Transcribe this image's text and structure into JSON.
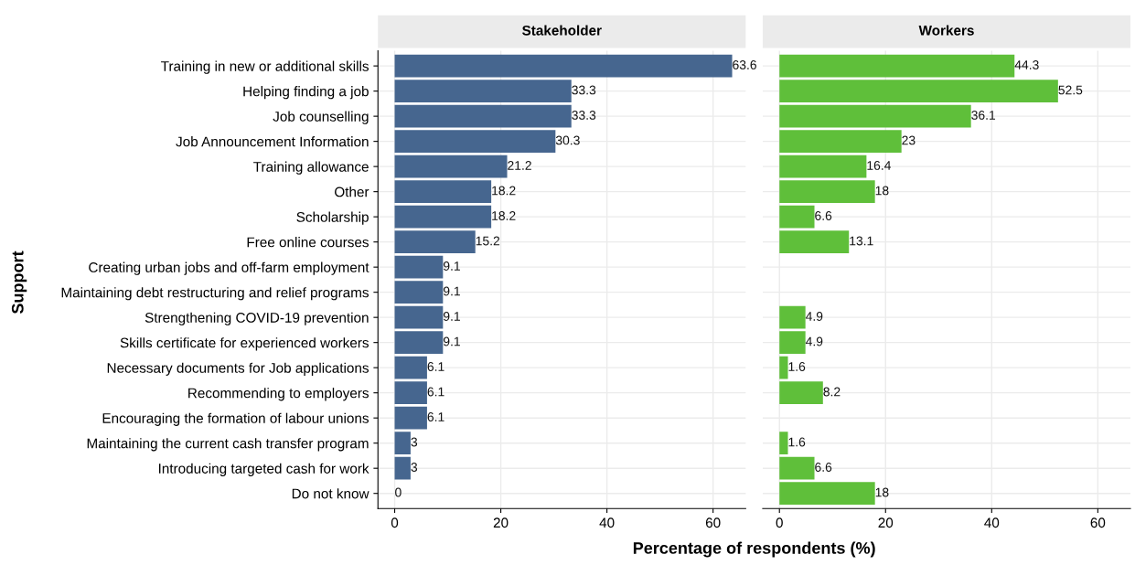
{
  "chart_data": [
    {
      "type": "bar",
      "orientation": "horizontal",
      "title": "Stakeholder",
      "xlabel": "Percentage of respondents (%)",
      "ylabel": "Support",
      "categories": [
        "Training in new or additional skills",
        "Helping finding a job",
        "Job counselling",
        "Job Announcement Information",
        "Training allowance",
        "Other",
        "Scholarship",
        "Free online courses",
        "Creating urban jobs and off-farm employment",
        "Maintaining debt restructuring and relief programs",
        "Strengthening COVID-19 prevention",
        "Skills certificate for experienced workers",
        "Necessary documents for Job applications",
        "Recommending to employers",
        "Encouraging the formation of labour unions",
        "Maintaining the current cash transfer program",
        "Introducing targeted cash for work",
        "Do not know"
      ],
      "series": [
        {
          "color": "#46668f",
          "values": [
            63.6,
            33.3,
            33.3,
            30.3,
            21.2,
            18.2,
            18.2,
            15.2,
            9.1,
            9.1,
            9.1,
            9.1,
            6.1,
            6.1,
            6.1,
            3,
            3,
            0
          ]
        }
      ],
      "xlim": [
        -3.15,
        66.15
      ],
      "xticks": [
        0,
        20,
        40,
        60
      ],
      "grid": true,
      "data_labels": true
    },
    {
      "type": "bar",
      "orientation": "horizontal",
      "title": "Workers",
      "categories": [
        null,
        null,
        null,
        null,
        null,
        null,
        null,
        null,
        null,
        null,
        null,
        null,
        null,
        null,
        null,
        null,
        null,
        null
      ],
      "series": [
        {
          "color": "#5fbf3a",
          "values": [
            44.3,
            52.5,
            36.1,
            23,
            16.4,
            18,
            6.6,
            13.1,
            null,
            null,
            4.9,
            4.9,
            1.6,
            8.2,
            null,
            1.6,
            6.6,
            18
          ]
        }
      ],
      "xlim": [
        -3.15,
        66.15
      ],
      "xticks": [
        0,
        20,
        40,
        60
      ],
      "grid": true,
      "data_labels": true,
      "tick_labels": "x"
    }
  ]
}
